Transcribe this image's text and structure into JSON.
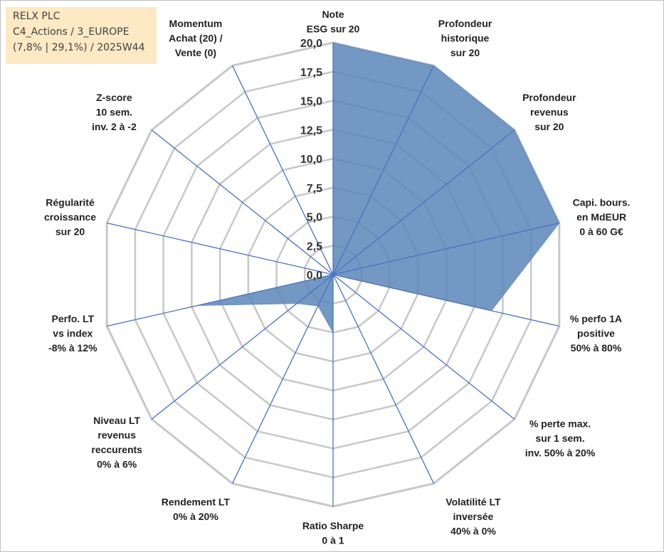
{
  "info": {
    "line1": "RELX PLC",
    "line2": "C4_Actions / 3_EUROPE",
    "line3": "(7,8% | 29,1%) / 2025W44"
  },
  "colors": {
    "fill": "#5b86b8",
    "stroke": "#4a72c4",
    "grid": "#c8c8c8"
  },
  "chart_data": {
    "type": "radar",
    "rmax": 20,
    "tick_step": 2.5,
    "ticks": [
      "0,0",
      "2,5",
      "5,0",
      "7,5",
      "10,0",
      "12,5",
      "15,0",
      "17,5",
      "20,0"
    ],
    "grid": true,
    "categories": [
      [
        "Note",
        "ESG sur 20"
      ],
      [
        "Profondeur",
        "historique",
        "sur 20"
      ],
      [
        "Profondeur",
        "revenus",
        "sur 20"
      ],
      [
        "Capi. bours.",
        "en MdEUR",
        "0 à 60 G€"
      ],
      [
        "% perfo 1A",
        "positive",
        "50% à 80%"
      ],
      [
        "% perte max.",
        "sur 1 sem.",
        "inv. 50% à 20%"
      ],
      [
        "Volatilité LT",
        "inversée",
        "40% à 0%"
      ],
      [
        "Ratio Sharpe",
        "0 à 1"
      ],
      [
        "Rendement LT",
        "0% à 20%"
      ],
      [
        "Niveau LT",
        "revenus",
        "reccurents",
        "0% à 6%"
      ],
      [
        "Perfo. LT",
        "vs index",
        "-8% à 12%"
      ],
      [
        "Régularité",
        "croissance",
        "sur 20"
      ],
      [
        "Z-score",
        "10 sem.",
        "inv. 2 à -2"
      ],
      [
        "Momentum",
        "Achat (20) /",
        "Vente (0)"
      ]
    ],
    "values": [
      20,
      20,
      20,
      20,
      14,
      0,
      0,
      5,
      3,
      4,
      12,
      0,
      0,
      0
    ]
  }
}
